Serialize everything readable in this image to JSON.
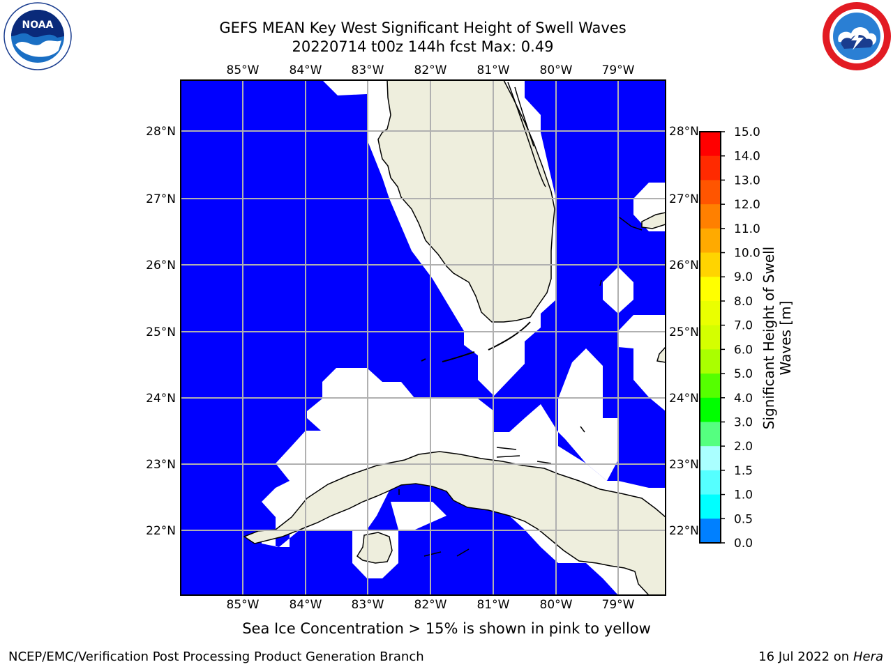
{
  "header": {
    "title_line1": "GEFS MEAN Key West Significant Height of Swell Waves",
    "title_line2": "20220714 t00z 144h fcst   Max: 0.49"
  },
  "logos": {
    "left": "noaa-logo",
    "right": "national-weather-service-logo"
  },
  "map": {
    "lon_labels": [
      "85°W",
      "84°W",
      "83°W",
      "82°W",
      "81°W",
      "80°W",
      "79°W"
    ],
    "lat_labels": [
      "28°N",
      "27°N",
      "26°N",
      "25°N",
      "24°N",
      "23°N",
      "22°N"
    ],
    "colors": {
      "ocean_low": "#0000ff",
      "land": "#eeeedd",
      "gridline": "#b0b0b0",
      "missing": "#ffffff"
    }
  },
  "colorbar": {
    "label_line1": "Significant Height of Swell",
    "label_line2": "Waves [m]",
    "ticks": [
      "15.0",
      "14.0",
      "13.0",
      "12.0",
      "11.0",
      "10.0",
      "9.0",
      "8.0",
      "7.0",
      "6.0",
      "5.0",
      "4.0",
      "3.0",
      "2.0",
      "1.5",
      "1.0",
      "0.5",
      "0.0"
    ],
    "colors": [
      "#ff0000",
      "#ff2a00",
      "#ff5500",
      "#ff8000",
      "#ffaa00",
      "#ffd400",
      "#ffff00",
      "#eaff00",
      "#d4ff00",
      "#aaff00",
      "#55ff00",
      "#00ff00",
      "#55ff80",
      "#aaffff",
      "#55ffff",
      "#00ffff",
      "#0080ff",
      "#0000ff"
    ]
  },
  "footer": {
    "sea_ice_note": "Sea Ice Concentration > 15% is shown in pink to yellow",
    "credit": "NCEP/EMC/Verification Post Processing Product Generation Branch",
    "date_prefix": "16 Jul 2022 on ",
    "host": "Hera"
  }
}
